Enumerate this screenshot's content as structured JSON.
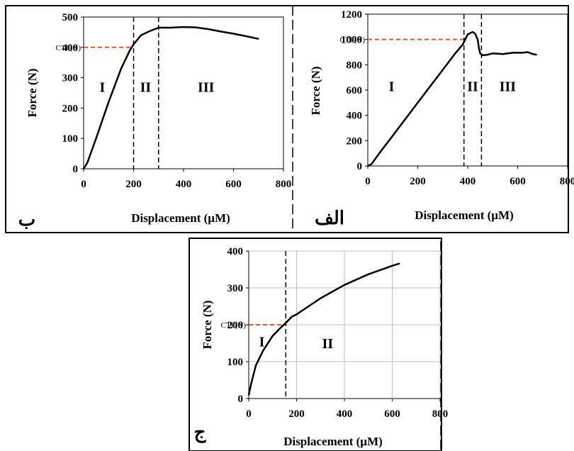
{
  "chart_data": [
    {
      "type": "line",
      "panel_label": "ب",
      "xlabel": "Displacement (µM)",
      "ylabel": "Force (N)",
      "xlim": [
        0,
        800
      ],
      "ylim": [
        0,
        500
      ],
      "xticks": [
        0,
        200,
        400,
        600,
        800
      ],
      "yticks": [
        0,
        100,
        200,
        300,
        400,
        500
      ],
      "ctf_label": "CTF(N)",
      "ctf_value": 400,
      "boundaries": [
        200,
        300
      ],
      "regions": [
        {
          "label": "I",
          "x": 75,
          "y": 270
        },
        {
          "label": "II",
          "x": 248,
          "y": 270
        },
        {
          "label": "III",
          "x": 490,
          "y": 270
        }
      ],
      "series": [
        {
          "x": [
            0,
            15,
            50,
            100,
            150,
            185,
            200,
            230,
            260,
            300,
            350,
            400,
            450,
            500,
            550,
            600,
            650,
            700
          ],
          "y": [
            0,
            20,
            100,
            220,
            330,
            390,
            410,
            440,
            452,
            465,
            465,
            467,
            466,
            460,
            452,
            445,
            437,
            428
          ]
        }
      ],
      "line_color": "#000000",
      "ctf_color": "#e3582c"
    },
    {
      "type": "line",
      "panel_label": "الف",
      "xlabel": "Displacement (µM)",
      "ylabel": "Force (N)",
      "xlim": [
        0,
        800
      ],
      "ylim": [
        0,
        1200
      ],
      "xticks": [
        0,
        200,
        400,
        600,
        800
      ],
      "yticks": [
        0,
        200,
        400,
        600,
        800,
        1000,
        1200
      ],
      "ctf_label": "CTF(N)",
      "ctf_value": 1000,
      "boundaries": [
        385,
        455
      ],
      "regions": [
        {
          "label": "I",
          "x": 95,
          "y": 630
        },
        {
          "label": "II",
          "x": 420,
          "y": 630
        },
        {
          "label": "III",
          "x": 560,
          "y": 630
        }
      ],
      "series": [
        {
          "x": [
            0,
            15,
            50,
            100,
            150,
            200,
            250,
            300,
            350,
            380,
            400,
            410,
            420,
            430,
            440,
            445,
            450,
            460,
            480,
            500,
            540,
            580,
            620,
            640,
            660,
            675
          ],
          "y": [
            0,
            15,
            110,
            240,
            370,
            500,
            630,
            760,
            890,
            960,
            1040,
            1050,
            1060,
            1045,
            1000,
            930,
            890,
            875,
            880,
            890,
            885,
            895,
            895,
            900,
            885,
            880
          ]
        }
      ],
      "line_color": "#000000",
      "ctf_color": "#e3582c"
    },
    {
      "type": "line",
      "panel_label": "ج",
      "xlabel": "Displacement (µM)",
      "ylabel": "Force (N)",
      "xlim": [
        0,
        800
      ],
      "ylim": [
        0,
        400
      ],
      "xticks": [
        0,
        200,
        400,
        600,
        800
      ],
      "yticks": [
        0,
        100,
        200,
        300,
        400
      ],
      "ctf_label": "CTF(N)",
      "ctf_value": 200,
      "boundaries": [
        155
      ],
      "gridlines_x": [
        200,
        400,
        600,
        800
      ],
      "gridlines_y": [
        100,
        200,
        300,
        400
      ],
      "regions": [
        {
          "label": "I",
          "x": 55,
          "y": 155
        },
        {
          "label": "II",
          "x": 330,
          "y": 150
        }
      ],
      "series": [
        {
          "x": [
            0,
            10,
            30,
            60,
            100,
            130,
            155,
            180,
            200,
            250,
            300,
            400,
            500,
            600,
            630
          ],
          "y": [
            10,
            40,
            90,
            130,
            170,
            190,
            205,
            222,
            228,
            250,
            272,
            308,
            337,
            360,
            366
          ]
        }
      ],
      "line_color": "#000000",
      "ctf_color": "#e3582c"
    }
  ]
}
